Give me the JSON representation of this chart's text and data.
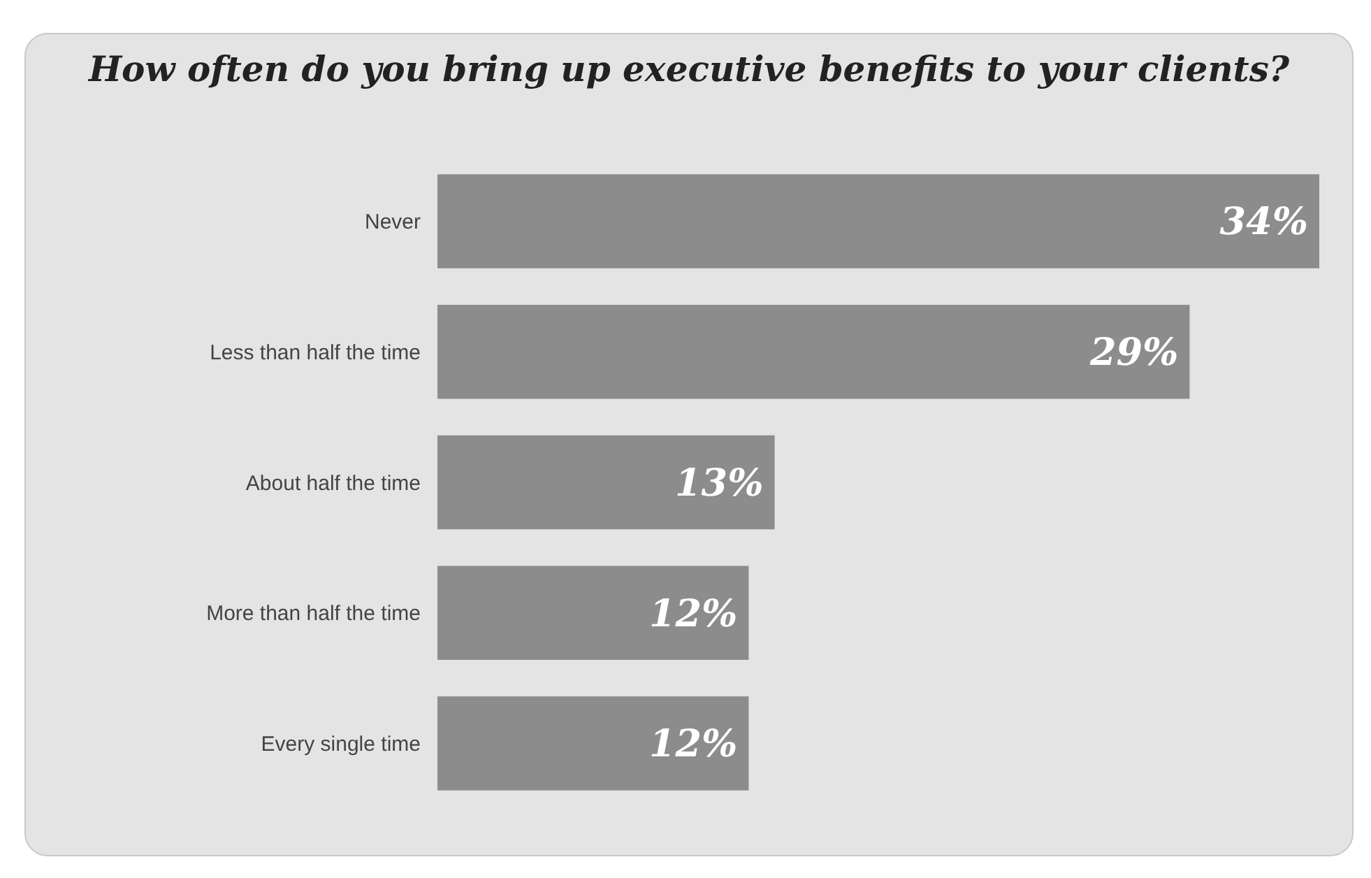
{
  "chart_data": {
    "type": "bar",
    "orientation": "horizontal",
    "title": "How often do you bring up executive benefits to your clients?",
    "categories": [
      "Never",
      "Less than half the time",
      "About half the time",
      "More than half the time",
      "Every single time"
    ],
    "values": [
      34,
      29,
      13,
      12,
      12
    ],
    "color": "#8c8c8c",
    "data_labels": true,
    "value_labels": [
      "34%",
      "29%",
      "13%",
      "12%",
      "12%"
    ]
  }
}
